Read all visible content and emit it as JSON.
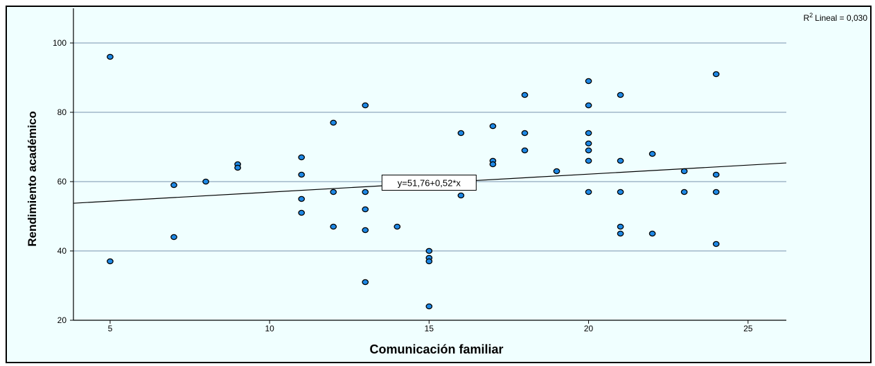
{
  "chart_data": {
    "type": "scatter",
    "title": "",
    "xlabel": "Comunicación familiar",
    "ylabel": "Rendimiento académico",
    "xlim": [
      3.85,
      26.2
    ],
    "ylim": [
      20,
      110
    ],
    "xticks": [
      5,
      10,
      15,
      20,
      25
    ],
    "yticks": [
      20,
      40,
      60,
      80,
      100
    ],
    "grid": "horizontal",
    "colors": {
      "background": "#f0ffff",
      "point": "#1e88e5",
      "gridline": "#8fa6be"
    },
    "points": [
      {
        "x": 5,
        "y": 96
      },
      {
        "x": 5,
        "y": 37
      },
      {
        "x": 7,
        "y": 59
      },
      {
        "x": 7,
        "y": 44
      },
      {
        "x": 8,
        "y": 60
      },
      {
        "x": 9,
        "y": 65
      },
      {
        "x": 9,
        "y": 64
      },
      {
        "x": 11,
        "y": 67
      },
      {
        "x": 11,
        "y": 62
      },
      {
        "x": 11,
        "y": 55
      },
      {
        "x": 11,
        "y": 51
      },
      {
        "x": 12,
        "y": 77
      },
      {
        "x": 12,
        "y": 57
      },
      {
        "x": 12,
        "y": 47
      },
      {
        "x": 13,
        "y": 82
      },
      {
        "x": 13,
        "y": 57
      },
      {
        "x": 13,
        "y": 52
      },
      {
        "x": 13,
        "y": 46
      },
      {
        "x": 13,
        "y": 31
      },
      {
        "x": 14,
        "y": 47
      },
      {
        "x": 15,
        "y": 40
      },
      {
        "x": 15,
        "y": 38
      },
      {
        "x": 15,
        "y": 37
      },
      {
        "x": 15,
        "y": 24
      },
      {
        "x": 16,
        "y": 74
      },
      {
        "x": 16,
        "y": 56
      },
      {
        "x": 17,
        "y": 76
      },
      {
        "x": 17,
        "y": 66
      },
      {
        "x": 17,
        "y": 65
      },
      {
        "x": 18,
        "y": 85
      },
      {
        "x": 18,
        "y": 74
      },
      {
        "x": 18,
        "y": 69
      },
      {
        "x": 19,
        "y": 63
      },
      {
        "x": 20,
        "y": 89
      },
      {
        "x": 20,
        "y": 82
      },
      {
        "x": 20,
        "y": 74
      },
      {
        "x": 20,
        "y": 71
      },
      {
        "x": 20,
        "y": 69
      },
      {
        "x": 20,
        "y": 66
      },
      {
        "x": 20,
        "y": 57
      },
      {
        "x": 21,
        "y": 85
      },
      {
        "x": 21,
        "y": 66
      },
      {
        "x": 21,
        "y": 57
      },
      {
        "x": 21,
        "y": 47
      },
      {
        "x": 21,
        "y": 45
      },
      {
        "x": 22,
        "y": 68
      },
      {
        "x": 22,
        "y": 45
      },
      {
        "x": 23,
        "y": 63
      },
      {
        "x": 23,
        "y": 57
      },
      {
        "x": 24,
        "y": 91
      },
      {
        "x": 24,
        "y": 62
      },
      {
        "x": 24,
        "y": 57
      },
      {
        "x": 24,
        "y": 42
      }
    ],
    "fit_line": {
      "intercept": 51.76,
      "slope": 0.52,
      "equation_label": "y=51,76+0,52*x",
      "equation_anchor": {
        "x": 15,
        "y": 59.5
      }
    },
    "r2_label": "Lineal = 0,030",
    "r2_prefix": "R",
    "r2_sup": "2"
  }
}
